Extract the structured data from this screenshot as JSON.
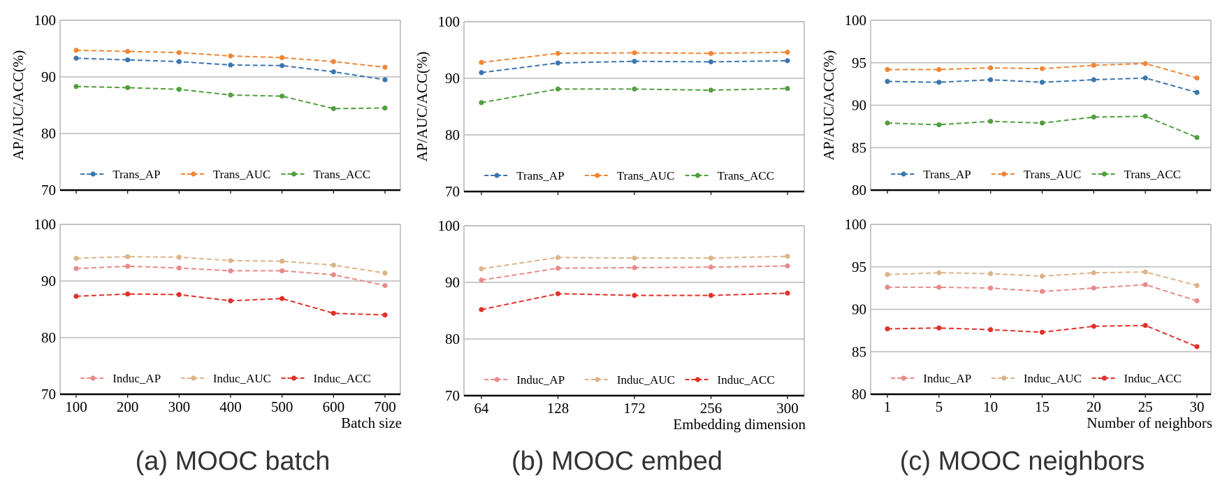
{
  "colors": {
    "Trans_AP": "#3a76af",
    "Trans_AUC": "#ef8636",
    "Trans_ACC": "#519e3e",
    "Induc_AP": "#e88a8a",
    "Induc_AUC": "#dcb48a",
    "Induc_ACC": "#e0312a",
    "grid": "#b9b9b9",
    "axis": "#000000"
  },
  "chart_data": [
    {
      "type": "line",
      "panel": "a-top",
      "ylabel": "AP/AUC/ACC(%)",
      "xlabel": "",
      "categories": [
        "100",
        "200",
        "300",
        "400",
        "500",
        "600",
        "700"
      ],
      "ylim": [
        70,
        100
      ],
      "yticks": [
        70,
        80,
        90,
        100
      ],
      "grid": "horizontal",
      "legend": "bottom",
      "series": [
        {
          "name": "Trans_AP",
          "values": [
            93.3,
            93.0,
            92.7,
            92.1,
            92.0,
            90.9,
            89.5
          ]
        },
        {
          "name": "Trans_AUC",
          "values": [
            94.7,
            94.5,
            94.3,
            93.7,
            93.4,
            92.7,
            91.7
          ]
        },
        {
          "name": "Trans_ACC",
          "values": [
            88.3,
            88.1,
            87.8,
            86.8,
            86.6,
            84.4,
            84.5
          ]
        }
      ]
    },
    {
      "type": "line",
      "panel": "a-bottom",
      "ylabel": "",
      "xlabel": "Batch size",
      "categories": [
        "100",
        "200",
        "300",
        "400",
        "500",
        "600",
        "700"
      ],
      "ylim": [
        70,
        100
      ],
      "yticks": [
        70,
        80,
        90,
        100
      ],
      "grid": "horizontal",
      "legend": "bottom",
      "series": [
        {
          "name": "Induc_AP",
          "values": [
            92.2,
            92.6,
            92.3,
            91.8,
            91.8,
            91.1,
            89.2
          ]
        },
        {
          "name": "Induc_AUC",
          "values": [
            94.0,
            94.3,
            94.2,
            93.6,
            93.5,
            92.8,
            91.4
          ]
        },
        {
          "name": "Induc_ACC",
          "values": [
            87.3,
            87.7,
            87.6,
            86.5,
            86.9,
            84.3,
            84.0
          ]
        }
      ]
    },
    {
      "type": "line",
      "panel": "b-top",
      "ylabel": "AP/AUC/ACC(%)",
      "xlabel": "",
      "categories": [
        "64",
        "128",
        "172",
        "256",
        "300"
      ],
      "ylim": [
        70,
        100
      ],
      "yticks": [
        70,
        80,
        90,
        100
      ],
      "grid": "horizontal",
      "legend": "bottom",
      "series": [
        {
          "name": "Trans_AP",
          "values": [
            91.0,
            92.7,
            93.0,
            92.9,
            93.1
          ]
        },
        {
          "name": "Trans_AUC",
          "values": [
            92.8,
            94.4,
            94.5,
            94.4,
            94.6
          ]
        },
        {
          "name": "Trans_ACC",
          "values": [
            85.7,
            88.1,
            88.1,
            87.9,
            88.2
          ]
        }
      ]
    },
    {
      "type": "line",
      "panel": "b-bottom",
      "ylabel": "",
      "xlabel": "Embedding dimension",
      "categories": [
        "64",
        "128",
        "172",
        "256",
        "300"
      ],
      "ylim": [
        70,
        100
      ],
      "yticks": [
        70,
        80,
        90,
        100
      ],
      "grid": "horizontal",
      "legend": "bottom",
      "series": [
        {
          "name": "Induc_AP",
          "values": [
            90.4,
            92.5,
            92.6,
            92.7,
            92.9
          ]
        },
        {
          "name": "Induc_AUC",
          "values": [
            92.4,
            94.4,
            94.3,
            94.3,
            94.6
          ]
        },
        {
          "name": "Induc_ACC",
          "values": [
            85.2,
            88.0,
            87.7,
            87.7,
            88.1
          ]
        }
      ]
    },
    {
      "type": "line",
      "panel": "c-top",
      "ylabel": "AP/AUC/ACC(%)",
      "xlabel": "",
      "categories": [
        "1",
        "5",
        "10",
        "15",
        "20",
        "25",
        "30"
      ],
      "ylim": [
        80,
        100
      ],
      "yticks": [
        80,
        85,
        90,
        95,
        100
      ],
      "grid": "horizontal",
      "legend": "bottom",
      "series": [
        {
          "name": "Trans_AP",
          "values": [
            92.8,
            92.7,
            93.0,
            92.7,
            93.0,
            93.2,
            91.5
          ]
        },
        {
          "name": "Trans_AUC",
          "values": [
            94.2,
            94.2,
            94.4,
            94.3,
            94.7,
            94.9,
            93.2
          ]
        },
        {
          "name": "Trans_ACC",
          "values": [
            87.9,
            87.7,
            88.1,
            87.9,
            88.6,
            88.7,
            86.2
          ]
        }
      ]
    },
    {
      "type": "line",
      "panel": "c-bottom",
      "ylabel": "",
      "xlabel": "Number of neighbors",
      "categories": [
        "1",
        "5",
        "10",
        "15",
        "20",
        "25",
        "30"
      ],
      "ylim": [
        80,
        100
      ],
      "yticks": [
        80,
        85,
        90,
        95,
        100
      ],
      "grid": "horizontal",
      "legend": "bottom",
      "series": [
        {
          "name": "Induc_AP",
          "values": [
            92.6,
            92.6,
            92.5,
            92.1,
            92.5,
            92.9,
            91.0
          ]
        },
        {
          "name": "Induc_AUC",
          "values": [
            94.1,
            94.3,
            94.2,
            93.9,
            94.3,
            94.4,
            92.8
          ]
        },
        {
          "name": "Induc_ACC",
          "values": [
            87.7,
            87.8,
            87.6,
            87.3,
            88.0,
            88.1,
            85.6
          ]
        }
      ]
    }
  ],
  "captions": [
    "(a) MOOC batch",
    "(b) MOOC embed",
    "(c) MOOC neighbors"
  ]
}
